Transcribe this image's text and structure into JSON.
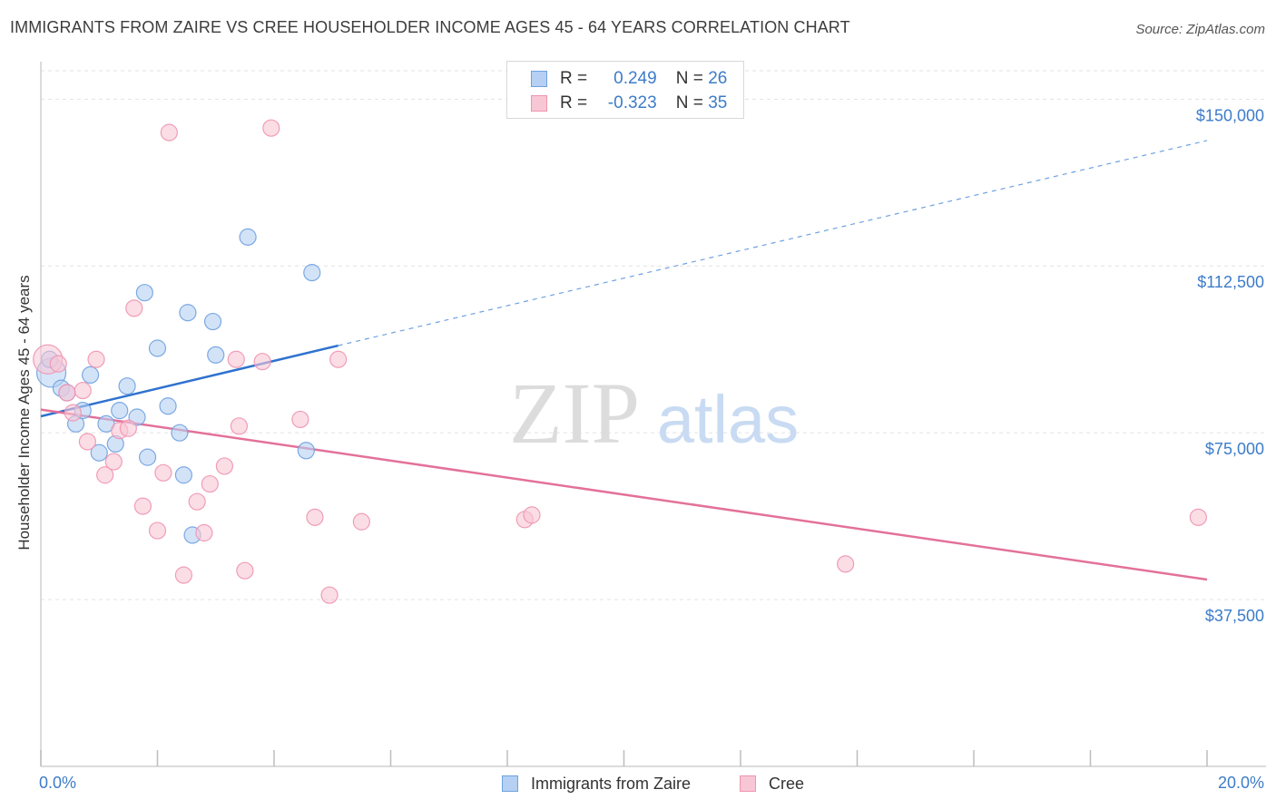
{
  "title": "IMMIGRANTS FROM ZAIRE VS CREE HOUSEHOLDER INCOME AGES 45 - 64 YEARS CORRELATION CHART",
  "source": "Source: ZipAtlas.com",
  "watermark": {
    "zip": "ZIP",
    "atlas": "atlas"
  },
  "legend": {
    "rows": [
      {
        "r_label": "R =",
        "r_value": "0.249",
        "n_label": "N =",
        "n_value": "26",
        "color": "#6fa1e0"
      },
      {
        "r_label": "R =",
        "r_value": "-0.323",
        "n_label": "N =",
        "n_value": "35",
        "color": "#ef94b0"
      }
    ]
  },
  "bottom_legend": [
    {
      "label": "Immigrants from Zaire",
      "color": "#6fa1e0"
    },
    {
      "label": "Cree",
      "color": "#ef94b0"
    }
  ],
  "chart_data": {
    "type": "scatter",
    "title": "IMMIGRANTS FROM ZAIRE VS CREE HOUSEHOLDER INCOME AGES 45 - 64 YEARS CORRELATION CHART",
    "xlabel": "",
    "ylabel": "Householder Income Ages 45 - 64 years",
    "xlim": [
      0,
      20
    ],
    "ylim": [
      0,
      157000
    ],
    "x_tick_labels": [
      {
        "value": 0,
        "label": "0.0%"
      },
      {
        "value": 20,
        "label": "20.0%"
      }
    ],
    "y_tick_labels": [
      {
        "value": 37500,
        "label": "$37,500"
      },
      {
        "value": 75000,
        "label": "$75,000"
      },
      {
        "value": 112500,
        "label": "$112,500"
      },
      {
        "value": 150000,
        "label": "$150,000"
      }
    ],
    "grid": true,
    "series": [
      {
        "name": "Immigrants from Zaire",
        "color": "#6fa1e0",
        "fill": "#b5d0f2",
        "trend": {
          "x0": 0,
          "y0": 78700,
          "x1": 5.1,
          "y1": 94600,
          "x_ext": 20,
          "y_ext": 140700
        },
        "points": [
          {
            "x": 0.18,
            "y": 88500,
            "big": true
          },
          {
            "x": 0.35,
            "y": 85000
          },
          {
            "x": 0.45,
            "y": 84000
          },
          {
            "x": 0.6,
            "y": 77000
          },
          {
            "x": 0.72,
            "y": 80000
          },
          {
            "x": 0.85,
            "y": 88000
          },
          {
            "x": 1.0,
            "y": 70500
          },
          {
            "x": 1.12,
            "y": 77000
          },
          {
            "x": 1.28,
            "y": 72500
          },
          {
            "x": 1.35,
            "y": 80000
          },
          {
            "x": 1.48,
            "y": 85500
          },
          {
            "x": 1.65,
            "y": 78500
          },
          {
            "x": 1.78,
            "y": 106500
          },
          {
            "x": 1.83,
            "y": 69500
          },
          {
            "x": 2.0,
            "y": 94000
          },
          {
            "x": 2.18,
            "y": 81000
          },
          {
            "x": 2.38,
            "y": 75000
          },
          {
            "x": 2.45,
            "y": 65500
          },
          {
            "x": 2.52,
            "y": 102000
          },
          {
            "x": 2.6,
            "y": 52000
          },
          {
            "x": 2.95,
            "y": 100000
          },
          {
            "x": 3.0,
            "y": 92500
          },
          {
            "x": 3.55,
            "y": 119000
          },
          {
            "x": 4.55,
            "y": 71000
          },
          {
            "x": 4.65,
            "y": 111000
          },
          {
            "x": 0.15,
            "y": 91500
          }
        ]
      },
      {
        "name": "Cree",
        "color": "#ef94b0",
        "fill": "#f8c7d6",
        "trend": {
          "x0": 0,
          "y0": 80200,
          "x1": 20,
          "y1": 42000
        },
        "points": [
          {
            "x": 0.12,
            "y": 91500,
            "big": true
          },
          {
            "x": 0.45,
            "y": 84000
          },
          {
            "x": 0.55,
            "y": 79500
          },
          {
            "x": 0.72,
            "y": 84500
          },
          {
            "x": 0.8,
            "y": 73000
          },
          {
            "x": 0.95,
            "y": 91500
          },
          {
            "x": 1.1,
            "y": 65500
          },
          {
            "x": 1.25,
            "y": 68500
          },
          {
            "x": 1.35,
            "y": 75500
          },
          {
            "x": 1.5,
            "y": 76000
          },
          {
            "x": 1.6,
            "y": 103000
          },
          {
            "x": 1.75,
            "y": 58500
          },
          {
            "x": 2.0,
            "y": 53000
          },
          {
            "x": 2.1,
            "y": 66000
          },
          {
            "x": 2.2,
            "y": 142500
          },
          {
            "x": 2.45,
            "y": 43000
          },
          {
            "x": 2.68,
            "y": 59500
          },
          {
            "x": 2.8,
            "y": 52500
          },
          {
            "x": 2.9,
            "y": 63500
          },
          {
            "x": 3.15,
            "y": 67500
          },
          {
            "x": 3.35,
            "y": 91500
          },
          {
            "x": 3.4,
            "y": 76500
          },
          {
            "x": 3.5,
            "y": 44000
          },
          {
            "x": 3.8,
            "y": 91000
          },
          {
            "x": 3.95,
            "y": 143500
          },
          {
            "x": 4.45,
            "y": 78000
          },
          {
            "x": 4.7,
            "y": 56000
          },
          {
            "x": 4.95,
            "y": 38500
          },
          {
            "x": 5.1,
            "y": 91500
          },
          {
            "x": 5.5,
            "y": 55000
          },
          {
            "x": 8.3,
            "y": 55500
          },
          {
            "x": 8.42,
            "y": 56500
          },
          {
            "x": 13.8,
            "y": 45500
          },
          {
            "x": 19.85,
            "y": 56000
          },
          {
            "x": 0.3,
            "y": 90500
          }
        ]
      }
    ]
  }
}
